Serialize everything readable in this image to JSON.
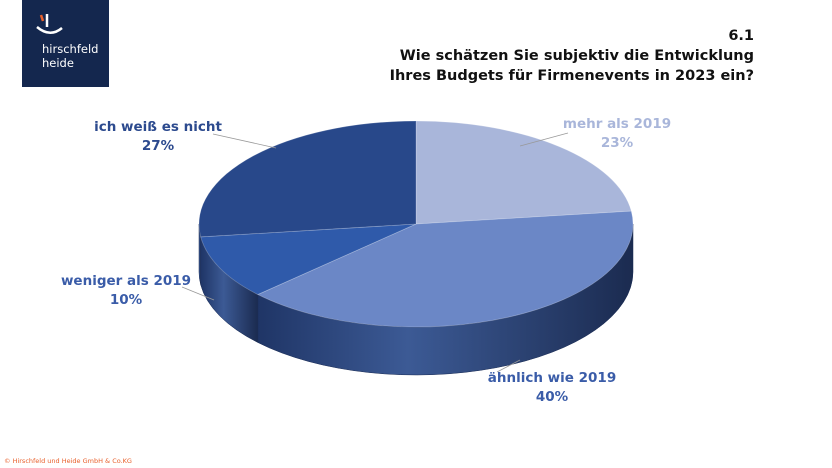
{
  "logo": {
    "line1": "hirschfeld",
    "line2": "heide"
  },
  "question_number": "6.1",
  "title_line1": "Wie schätzen Sie subjektiv die Entwicklung",
  "title_line2": "Ihres Budgets für Firmenevents in 2023 ein?",
  "footer": "© Hirschfeld und Heide GmbH & Co.KG",
  "chart_data": {
    "type": "pie",
    "style": "3d",
    "title": "Wie schätzen Sie subjektiv die Entwicklung Ihres Budgets für Firmenevents in 2023 ein?",
    "slices": [
      {
        "label": "mehr als 2019",
        "value": 23,
        "value_label": "23%",
        "color": "#a9b6da"
      },
      {
        "label": "ähnlich wie 2019",
        "value": 40,
        "value_label": "40%",
        "color": "#6b87c6"
      },
      {
        "label": "weniger als 2019",
        "value": 10,
        "value_label": "10%",
        "color": "#2f5aaa"
      },
      {
        "label": "ich weiß es nicht",
        "value": 27,
        "value_label": "27%",
        "color": "#28488a"
      }
    ],
    "legend": "none"
  }
}
